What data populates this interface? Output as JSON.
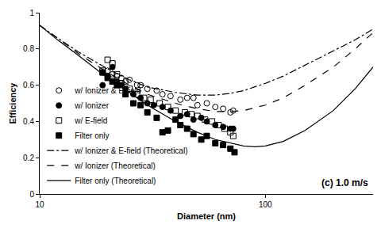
{
  "chart_data": {
    "type": "scatter",
    "x_label": "Diameter (nm)",
    "y_label": "Efficiency",
    "annotations": [
      {
        "text": "(c) 1.0 m/s"
      }
    ],
    "log": "x",
    "grid": false,
    "legend": "lower left",
    "xlim": [
      10,
      300
    ],
    "xticks": [
      10,
      100
    ],
    "ylim": [
      0,
      1
    ],
    "yticks": [
      0,
      0.2,
      0.4,
      0.6,
      0.8,
      1
    ],
    "series": [
      {
        "name": "w/ Ionizer & E-field",
        "type": "scatter",
        "marker": "circle-open",
        "color": "#000000",
        "x": [
          19,
          20,
          21,
          22,
          23,
          24,
          25,
          27,
          28,
          30,
          33,
          35,
          38,
          42,
          45,
          48,
          50,
          55,
          60,
          65,
          70,
          72
        ],
        "values": [
          0.67,
          0.68,
          0.66,
          0.65,
          0.64,
          0.62,
          0.63,
          0.6,
          0.6,
          0.58,
          0.57,
          0.55,
          0.54,
          0.52,
          0.53,
          0.53,
          0.49,
          0.5,
          0.48,
          0.47,
          0.45,
          0.46
        ]
      },
      {
        "name": "w/ Ionizer",
        "type": "scatter",
        "marker": "circle",
        "color": "#000000",
        "x": [
          19,
          20,
          21,
          22,
          23,
          24,
          26,
          28,
          30,
          32,
          35,
          38,
          42,
          45,
          48,
          52,
          55,
          60,
          65,
          70,
          72
        ],
        "values": [
          0.6,
          0.65,
          0.7,
          0.62,
          0.6,
          0.58,
          0.55,
          0.53,
          0.5,
          0.49,
          0.48,
          0.46,
          0.43,
          0.44,
          0.41,
          0.42,
          0.4,
          0.38,
          0.37,
          0.36,
          0.36
        ]
      },
      {
        "name": "w/ E-field",
        "type": "scatter",
        "marker": "square-open",
        "color": "#000000",
        "x": [
          19,
          20,
          21,
          22,
          23,
          25,
          27,
          29,
          31,
          34,
          37,
          40,
          44,
          47,
          50,
          54,
          58,
          62,
          66,
          70,
          72
        ],
        "values": [
          0.68,
          0.74,
          0.72,
          0.66,
          0.61,
          0.58,
          0.55,
          0.53,
          0.52,
          0.5,
          0.48,
          0.46,
          0.45,
          0.44,
          0.43,
          0.41,
          0.4,
          0.38,
          0.36,
          0.34,
          0.32
        ]
      },
      {
        "name": "Filter only",
        "type": "scatter",
        "marker": "square",
        "color": "#000000",
        "x": [
          19,
          20,
          21,
          22,
          24,
          26,
          28,
          30,
          33,
          35,
          37,
          40,
          42,
          45,
          48,
          52,
          55,
          60,
          65,
          70,
          73
        ],
        "values": [
          0.67,
          0.64,
          0.62,
          0.6,
          0.55,
          0.5,
          0.49,
          0.45,
          0.42,
          0.34,
          0.35,
          0.41,
          0.38,
          0.36,
          0.33,
          0.3,
          0.32,
          0.28,
          0.27,
          0.25,
          0.23
        ]
      },
      {
        "name": "w/ Ionizer & E-field (Theoretical)",
        "type": "line",
        "line_style": "dashdot",
        "color": "#000000",
        "x": [
          10,
          12,
          15,
          20,
          25,
          30,
          40,
          50,
          60,
          70,
          80,
          90,
          100,
          120,
          150,
          200,
          250,
          300
        ],
        "values": [
          0.93,
          0.86,
          0.78,
          0.69,
          0.63,
          0.59,
          0.56,
          0.545,
          0.545,
          0.555,
          0.57,
          0.59,
          0.61,
          0.65,
          0.71,
          0.79,
          0.85,
          0.91
        ]
      },
      {
        "name": "w/ Ionizer (Theoretical)",
        "type": "line",
        "line_style": "dash",
        "color": "#000000",
        "x": [
          10,
          12,
          15,
          20,
          25,
          30,
          40,
          50,
          60,
          70,
          80,
          90,
          100,
          120,
          150,
          200,
          250,
          300
        ],
        "values": [
          0.93,
          0.86,
          0.77,
          0.67,
          0.6,
          0.55,
          0.5,
          0.47,
          0.455,
          0.455,
          0.46,
          0.475,
          0.49,
          0.53,
          0.6,
          0.7,
          0.8,
          0.89
        ]
      },
      {
        "name": "Filter only (Theoretical)",
        "type": "line",
        "line_style": "solid",
        "color": "#000000",
        "x": [
          10,
          12,
          15,
          20,
          25,
          30,
          40,
          50,
          60,
          70,
          80,
          90,
          100,
          120,
          150,
          200,
          250,
          300
        ],
        "values": [
          0.93,
          0.85,
          0.76,
          0.64,
          0.56,
          0.49,
          0.4,
          0.34,
          0.3,
          0.28,
          0.265,
          0.26,
          0.265,
          0.29,
          0.35,
          0.46,
          0.58,
          0.7
        ]
      }
    ]
  }
}
